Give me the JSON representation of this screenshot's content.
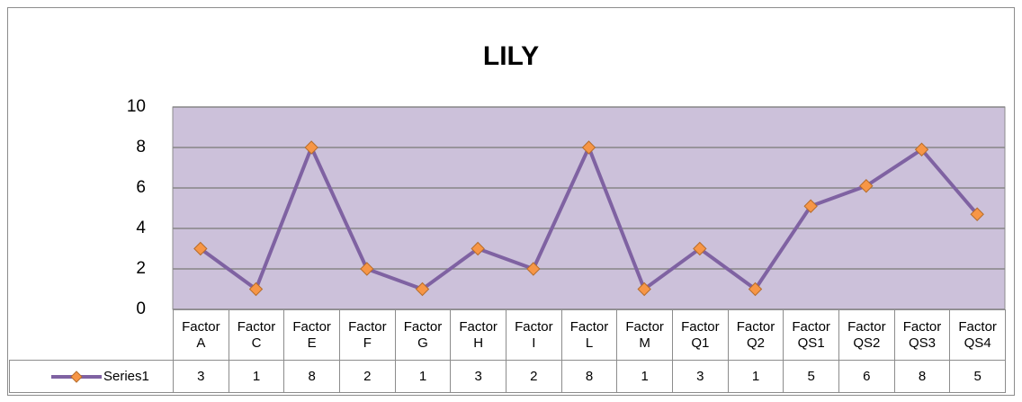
{
  "chart_data": {
    "type": "line",
    "title": "LILY",
    "categories": [
      "Factor A",
      "Factor C",
      "Factor E",
      "Factor F",
      "Factor G",
      "Factor H",
      "Factor I",
      "Factor L",
      "Factor M",
      "Factor Q1",
      "Factor Q2",
      "Factor QS1",
      "Factor QS2",
      "Factor QS3",
      "Factor QS4"
    ],
    "series": [
      {
        "name": "Series1",
        "color": "#7f62a2",
        "marker_color": "#f79646",
        "values": [
          3,
          1,
          8,
          2,
          1,
          3,
          2,
          8,
          1,
          3,
          1,
          5.1,
          6.1,
          7.9,
          4.7
        ],
        "value_labels": [
          "3",
          "1",
          "8",
          "2",
          "1",
          "3",
          "2",
          "8",
          "1",
          "3",
          "1",
          "5",
          "6",
          "8",
          "5"
        ]
      }
    ],
    "ylim": [
      0,
      10
    ],
    "yticks": [
      0,
      2,
      4,
      6,
      8,
      10
    ],
    "grid": true,
    "plot_background": "#ccc1da",
    "data_table": true
  }
}
